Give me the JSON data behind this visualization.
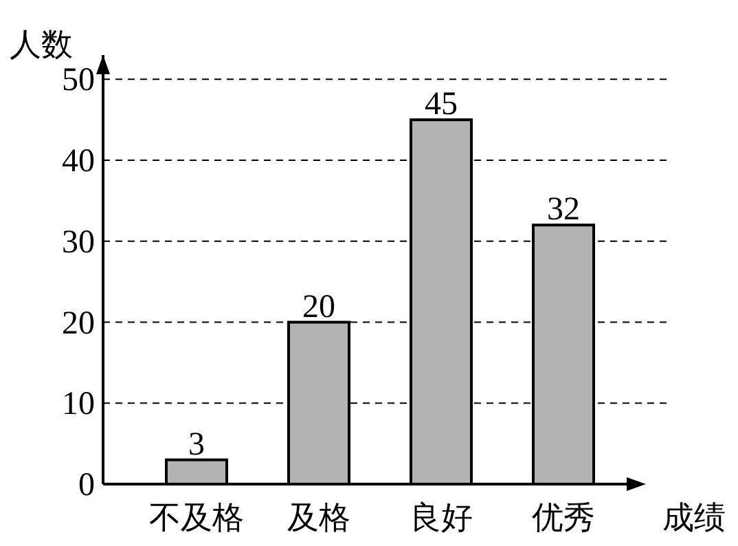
{
  "chart_data": {
    "type": "bar",
    "xlabel": "成绩",
    "ylabel": "人数",
    "categories": [
      "不及格",
      "及格",
      "良好",
      "优秀"
    ],
    "values": [
      3,
      20,
      45,
      32
    ],
    "color": "#b3b3b3",
    "ylim": [
      0,
      53
    ],
    "yticks": [
      0,
      10,
      20,
      30,
      40,
      50
    ],
    "grid": "y",
    "data_labels": true
  }
}
